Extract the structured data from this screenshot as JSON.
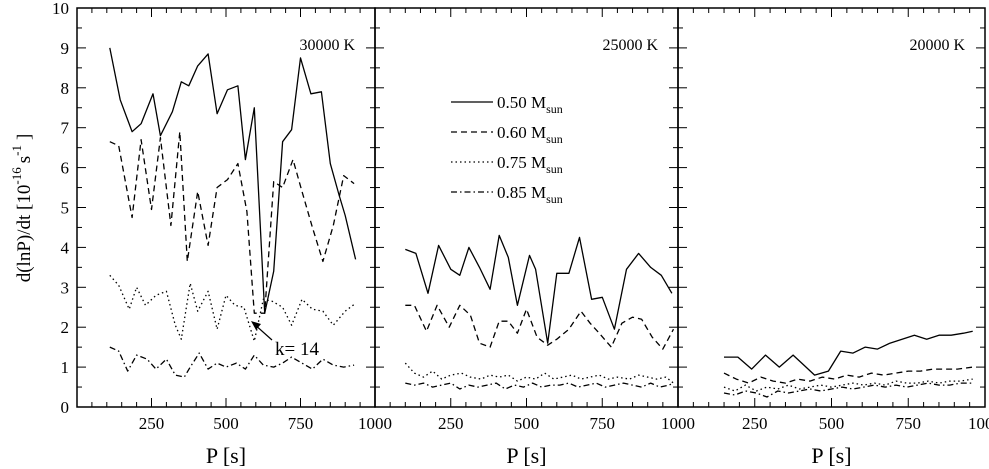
{
  "figure": {
    "ylabel_main": "d(lnP)/dt  [10",
    "ylabel_exp": "-16",
    "ylabel_unit": "s",
    "ylabel_unit_exp": "-1",
    "ylabel_close": "]",
    "annotation": "k= 14",
    "legend_sub": "sun"
  },
  "chart_data": [
    {
      "type": "line",
      "title": "30000 K",
      "xlabel": "P [s]",
      "ylabel": "d(lnP)/dt  [10^-16 s^-1]",
      "xlim": [
        0,
        1000
      ],
      "ylim": [
        0,
        10
      ],
      "xticks": [
        250,
        500,
        750,
        1000
      ],
      "yticks": [
        0,
        1,
        2,
        3,
        4,
        5,
        6,
        7,
        8,
        9,
        10
      ],
      "annotation": {
        "text": "k= 14",
        "x": 630,
        "y": 2.3
      },
      "series": [
        {
          "name": "0.50 M_sun",
          "dash": "solid",
          "x": [
            110,
            145,
            185,
            215,
            255,
            280,
            320,
            350,
            375,
            405,
            440,
            470,
            505,
            540,
            565,
            595,
            630,
            660,
            690,
            720,
            750,
            785,
            820,
            850,
            880,
            900,
            935
          ],
          "y": [
            9.0,
            7.7,
            6.9,
            7.1,
            7.85,
            6.8,
            7.4,
            8.15,
            8.05,
            8.55,
            8.85,
            7.35,
            7.95,
            8.05,
            6.2,
            7.5,
            2.35,
            3.4,
            6.65,
            6.95,
            8.75,
            7.85,
            7.9,
            6.1,
            5.3,
            4.8,
            3.7
          ]
        },
        {
          "name": "0.60 M_sun",
          "dash": "dashed",
          "x": [
            110,
            140,
            185,
            215,
            250,
            280,
            315,
            345,
            370,
            405,
            440,
            470,
            505,
            540,
            570,
            595,
            630,
            660,
            690,
            725,
            755,
            790,
            825,
            860,
            895,
            930
          ],
          "y": [
            6.65,
            6.55,
            4.75,
            6.7,
            4.95,
            6.75,
            4.55,
            6.9,
            3.65,
            5.4,
            4.05,
            5.5,
            5.7,
            6.1,
            4.9,
            2.35,
            2.35,
            5.65,
            5.5,
            6.2,
            5.4,
            4.5,
            3.65,
            4.55,
            5.8,
            5.6
          ]
        },
        {
          "name": "0.75 M_sun",
          "dash": "dotted",
          "x": [
            110,
            140,
            175,
            200,
            230,
            265,
            300,
            330,
            350,
            380,
            405,
            440,
            470,
            500,
            530,
            560,
            595,
            625,
            655,
            690,
            720,
            755,
            790,
            825,
            860,
            900,
            935
          ],
          "y": [
            3.3,
            3.05,
            2.45,
            3.0,
            2.55,
            2.8,
            2.9,
            2.05,
            1.7,
            3.1,
            2.4,
            2.9,
            1.95,
            2.8,
            2.55,
            2.5,
            1.65,
            2.7,
            2.65,
            2.5,
            2.05,
            2.7,
            2.45,
            2.4,
            2.05,
            2.4,
            2.6
          ]
        },
        {
          "name": "0.85 M_sun",
          "dash": "dashdot",
          "x": [
            110,
            140,
            170,
            200,
            235,
            265,
            300,
            330,
            360,
            380,
            410,
            440,
            470,
            500,
            535,
            565,
            595,
            625,
            660,
            690,
            720,
            755,
            790,
            825,
            860,
            895,
            930
          ],
          "y": [
            1.5,
            1.4,
            0.9,
            1.3,
            1.2,
            0.95,
            1.2,
            0.8,
            0.75,
            1.0,
            1.35,
            0.95,
            1.1,
            1.0,
            1.1,
            0.95,
            1.3,
            1.05,
            1.0,
            1.1,
            1.25,
            1.1,
            0.95,
            1.2,
            1.05,
            1.0,
            1.05
          ]
        }
      ]
    },
    {
      "type": "line",
      "title": "25000 K",
      "xlabel": "P [s]",
      "xlim": [
        0,
        1000
      ],
      "ylim": [
        0,
        10
      ],
      "xticks": [
        250,
        500,
        750,
        1000
      ],
      "series": [
        {
          "name": "0.50 M_sun",
          "dash": "solid",
          "x": [
            100,
            135,
            175,
            210,
            250,
            280,
            310,
            345,
            380,
            410,
            440,
            470,
            510,
            530,
            570,
            600,
            640,
            675,
            715,
            750,
            790,
            830,
            870,
            910,
            945,
            980
          ],
          "y": [
            3.95,
            3.85,
            2.85,
            4.05,
            3.45,
            3.3,
            4.0,
            3.5,
            2.95,
            4.3,
            3.75,
            2.55,
            3.8,
            3.45,
            1.6,
            3.35,
            3.35,
            4.25,
            2.7,
            2.75,
            1.95,
            3.45,
            3.85,
            3.5,
            3.3,
            2.85
          ]
        },
        {
          "name": "0.60 M_sun",
          "dash": "dashed",
          "x": [
            100,
            130,
            170,
            205,
            245,
            280,
            315,
            345,
            380,
            410,
            440,
            470,
            500,
            535,
            570,
            600,
            640,
            680,
            710,
            740,
            780,
            815,
            850,
            880,
            915,
            950,
            985
          ],
          "y": [
            2.55,
            2.55,
            1.9,
            2.55,
            2.0,
            2.55,
            2.3,
            1.6,
            1.5,
            2.15,
            2.15,
            1.85,
            2.45,
            1.75,
            1.55,
            1.7,
            1.95,
            2.4,
            2.1,
            1.85,
            1.5,
            2.1,
            2.25,
            2.2,
            1.75,
            1.45,
            1.95
          ]
        },
        {
          "name": "0.75 M_sun",
          "dash": "dotted",
          "x": [
            100,
            130,
            160,
            190,
            220,
            250,
            285,
            315,
            350,
            380,
            410,
            440,
            470,
            500,
            530,
            560,
            590,
            620,
            650,
            680,
            710,
            740,
            770,
            800,
            840,
            870,
            900,
            930,
            960,
            985
          ],
          "y": [
            1.1,
            0.85,
            0.75,
            0.9,
            0.7,
            0.8,
            0.85,
            0.75,
            0.7,
            0.8,
            0.75,
            0.8,
            0.65,
            0.75,
            0.7,
            0.85,
            0.7,
            0.75,
            0.8,
            0.7,
            0.75,
            0.8,
            0.7,
            0.75,
            0.7,
            0.8,
            0.75,
            0.7,
            0.75,
            0.6
          ]
        },
        {
          "name": "0.85 M_sun",
          "dash": "dashdot",
          "x": [
            100,
            130,
            160,
            190,
            220,
            250,
            280,
            310,
            340,
            370,
            400,
            430,
            460,
            490,
            520,
            550,
            580,
            610,
            640,
            670,
            700,
            730,
            760,
            790,
            820,
            850,
            880,
            910,
            940,
            970,
            985
          ],
          "y": [
            0.6,
            0.55,
            0.6,
            0.5,
            0.55,
            0.6,
            0.45,
            0.55,
            0.5,
            0.55,
            0.6,
            0.45,
            0.55,
            0.5,
            0.6,
            0.5,
            0.55,
            0.55,
            0.6,
            0.5,
            0.55,
            0.6,
            0.5,
            0.55,
            0.6,
            0.55,
            0.5,
            0.6,
            0.5,
            0.55,
            0.6
          ]
        }
      ]
    },
    {
      "type": "line",
      "title": "20000 K",
      "xlabel": "P [s]",
      "xlim": [
        0,
        1000
      ],
      "ylim": [
        0,
        10
      ],
      "xticks": [
        250,
        500,
        750,
        1000
      ],
      "series": [
        {
          "name": "0.50 M_sun",
          "dash": "solid",
          "x": [
            150,
            195,
            240,
            285,
            330,
            375,
            410,
            445,
            490,
            530,
            570,
            610,
            650,
            690,
            730,
            770,
            810,
            850,
            890,
            930,
            960
          ],
          "y": [
            1.25,
            1.25,
            0.95,
            1.3,
            1.0,
            1.3,
            1.05,
            0.8,
            0.9,
            1.4,
            1.35,
            1.5,
            1.45,
            1.6,
            1.7,
            1.8,
            1.7,
            1.8,
            1.8,
            1.85,
            1.9
          ]
        },
        {
          "name": "0.60 M_sun",
          "dash": "dashed",
          "x": [
            150,
            190,
            230,
            270,
            310,
            350,
            390,
            430,
            470,
            510,
            550,
            590,
            630,
            670,
            710,
            750,
            790,
            830,
            870,
            910,
            960
          ],
          "y": [
            0.85,
            0.7,
            0.6,
            0.75,
            0.65,
            0.6,
            0.7,
            0.65,
            0.75,
            0.7,
            0.8,
            0.75,
            0.85,
            0.8,
            0.85,
            0.9,
            0.9,
            0.95,
            0.95,
            0.95,
            1.0
          ]
        },
        {
          "name": "0.75 M_sun",
          "dash": "dotted",
          "x": [
            150,
            185,
            220,
            255,
            290,
            325,
            360,
            395,
            430,
            465,
            500,
            535,
            570,
            605,
            640,
            675,
            710,
            745,
            780,
            815,
            850,
            885,
            920,
            960
          ],
          "y": [
            0.5,
            0.4,
            0.55,
            0.4,
            0.5,
            0.45,
            0.55,
            0.45,
            0.5,
            0.55,
            0.5,
            0.55,
            0.6,
            0.55,
            0.6,
            0.55,
            0.65,
            0.6,
            0.6,
            0.65,
            0.6,
            0.65,
            0.65,
            0.7
          ]
        },
        {
          "name": "0.85 M_sun",
          "dash": "dashdot",
          "x": [
            150,
            185,
            220,
            255,
            290,
            325,
            360,
            395,
            430,
            465,
            500,
            535,
            570,
            605,
            640,
            675,
            710,
            745,
            780,
            815,
            850,
            885,
            920,
            960
          ],
          "y": [
            0.35,
            0.3,
            0.4,
            0.35,
            0.25,
            0.4,
            0.35,
            0.4,
            0.45,
            0.4,
            0.45,
            0.5,
            0.45,
            0.5,
            0.55,
            0.5,
            0.55,
            0.5,
            0.55,
            0.6,
            0.55,
            0.55,
            0.6,
            0.6
          ]
        }
      ]
    }
  ],
  "legend": [
    {
      "label": "0.50 M",
      "sub": "sun",
      "dash": "solid"
    },
    {
      "label": "0.60 M",
      "sub": "sun",
      "dash": "dashed"
    },
    {
      "label": "0.75 M",
      "sub": "sun",
      "dash": "dotted"
    },
    {
      "label": "0.85 M",
      "sub": "sun",
      "dash": "dashdot"
    }
  ],
  "colors": {
    "line": "#000000",
    "background": "#ffffff"
  }
}
